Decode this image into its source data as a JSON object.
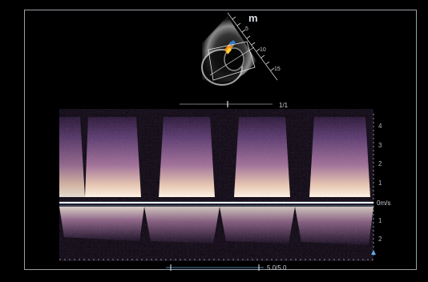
{
  "image": {
    "kind": "echocardiogram-doppler-screen",
    "colors": {
      "background": "#000000",
      "frame": "#9aa0a6",
      "text": "#c8cdd3",
      "spectrum_core": "#f6e8d6",
      "spectrum_mid": "#b37fb3",
      "spectrum_edge": "#3b234a",
      "baseline": "#e8f0ff",
      "marker_blue": "#5fa8e6"
    }
  },
  "echo_view": {
    "mode_mark": "m",
    "depth_ticks": [
      "5",
      "10",
      "15"
    ],
    "frame_counter": "1/1"
  },
  "doppler": {
    "zero_label": "0m/s",
    "velocity_ticks_up": [
      "4",
      "3",
      "2",
      "1"
    ],
    "velocity_ticks_down": [
      "1",
      "2"
    ],
    "scale_readout": "5.0/5.0",
    "beats": 4
  }
}
